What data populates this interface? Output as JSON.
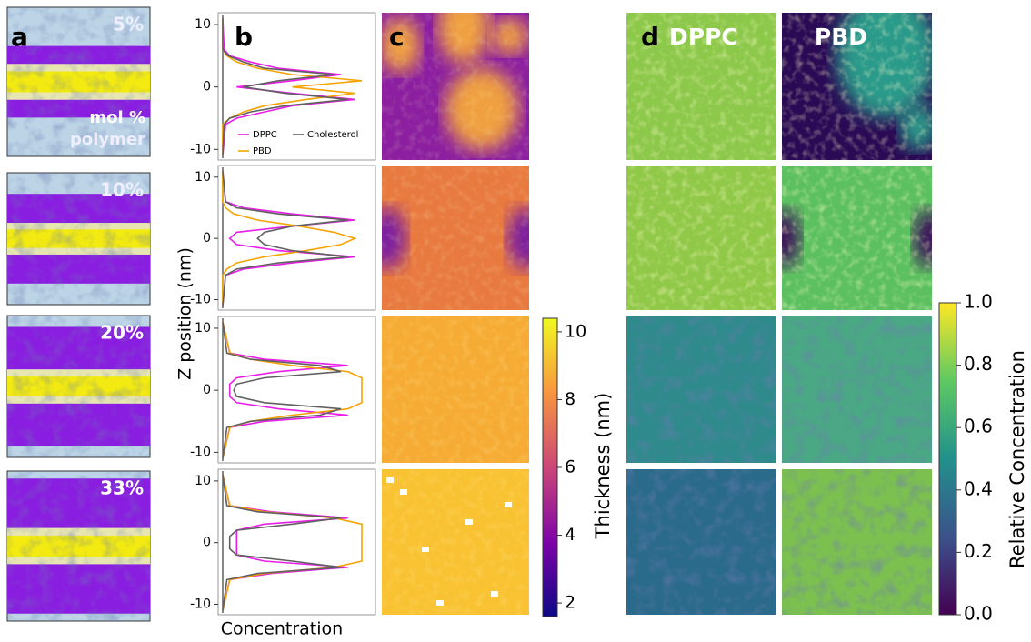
{
  "panel_a": {
    "label": "a",
    "percents": [
      "5%",
      "10%",
      "20%",
      "33%"
    ],
    "annotation": [
      "mol %",
      "polymer"
    ]
  },
  "panel_b": {
    "label": "b",
    "ylabel": "Z position (nm)",
    "xlabel": "Concentration",
    "ylim": [
      -11.7,
      11.9
    ],
    "yticks": [
      -10,
      0,
      10
    ],
    "series": [
      {
        "name": "DPPC",
        "color": "#e81ee8"
      },
      {
        "name": "PBD",
        "color": "#f5a300"
      },
      {
        "name": "Cholesterol",
        "color": "#606060"
      }
    ],
    "z": [
      -11,
      -6,
      -5,
      -4,
      -3,
      -2,
      -1,
      0,
      1,
      2,
      3,
      4,
      5,
      6,
      11
    ],
    "profiles": [
      [
        [
          0,
          0.02,
          0.1,
          0.3,
          0.5,
          0.95,
          0.5,
          0.1,
          0.5,
          0.85,
          0.4,
          0.2,
          0.05,
          0.01,
          0
        ],
        [
          0,
          0,
          0.05,
          0.15,
          0.3,
          0.6,
          0.95,
          0.5,
          1.0,
          0.5,
          0.25,
          0.1,
          0.03,
          0,
          0
        ],
        [
          0,
          0.01,
          0.05,
          0.2,
          0.45,
          0.9,
          0.45,
          0.15,
          0.4,
          0.8,
          0.3,
          0.15,
          0.04,
          0,
          0
        ]
      ],
      [
        [
          0,
          0.02,
          0.15,
          0.5,
          0.95,
          0.4,
          0.1,
          0.05,
          0.1,
          0.5,
          0.95,
          0.5,
          0.15,
          0.02,
          0
        ],
        [
          0,
          0,
          0.03,
          0.1,
          0.3,
          0.6,
          0.85,
          0.95,
          0.8,
          0.55,
          0.25,
          0.08,
          0.02,
          0,
          0
        ],
        [
          0,
          0.02,
          0.1,
          0.4,
          0.9,
          0.5,
          0.3,
          0.25,
          0.3,
          0.5,
          0.9,
          0.4,
          0.1,
          0.02,
          0
        ]
      ],
      [
        [
          0,
          0.05,
          0.3,
          0.9,
          0.4,
          0.1,
          0.05,
          0.05,
          0.05,
          0.1,
          0.4,
          0.9,
          0.3,
          0.05,
          0
        ],
        [
          0,
          0.05,
          0.2,
          0.5,
          0.9,
          1.0,
          1.0,
          1.0,
          1.0,
          1.0,
          0.9,
          0.5,
          0.2,
          0.05,
          0
        ],
        [
          0,
          0.03,
          0.2,
          0.7,
          0.85,
          0.3,
          0.1,
          0.08,
          0.1,
          0.3,
          0.85,
          0.7,
          0.2,
          0.03,
          0
        ]
      ],
      [
        [
          0,
          0.05,
          0.35,
          0.9,
          0.3,
          0.1,
          0.1,
          0.1,
          0.1,
          0.1,
          0.3,
          0.9,
          0.35,
          0.05,
          0
        ],
        [
          0,
          0.05,
          0.3,
          0.8,
          1.0,
          1.0,
          1.0,
          1.0,
          1.0,
          1.0,
          1.0,
          0.8,
          0.3,
          0.05,
          0
        ],
        [
          0,
          0.03,
          0.25,
          0.85,
          0.5,
          0.1,
          0.05,
          0.05,
          0.05,
          0.1,
          0.5,
          0.85,
          0.25,
          0.03,
          0
        ]
      ]
    ]
  },
  "panel_c": {
    "label": "c",
    "colorbar": {
      "label": "Thickness (nm)",
      "lim": [
        1.6,
        10.4
      ],
      "ticks": [
        2,
        4,
        6,
        8,
        10
      ]
    }
  },
  "panel_d": {
    "label": "d",
    "titles": [
      "DPPC",
      "PBD"
    ],
    "colorbar": {
      "label": "Relative Concentration",
      "lim": [
        0,
        1
      ],
      "ticks": [
        {
          "value": 0,
          "label": "0.0"
        },
        {
          "value": 0.2,
          "label": "0.2"
        },
        {
          "value": 0.4,
          "label": "0.4"
        },
        {
          "value": 0.6,
          "label": "0.6"
        },
        {
          "value": 0.8,
          "label": "0.8"
        },
        {
          "value": 1,
          "label": "1.0"
        }
      ]
    }
  }
}
